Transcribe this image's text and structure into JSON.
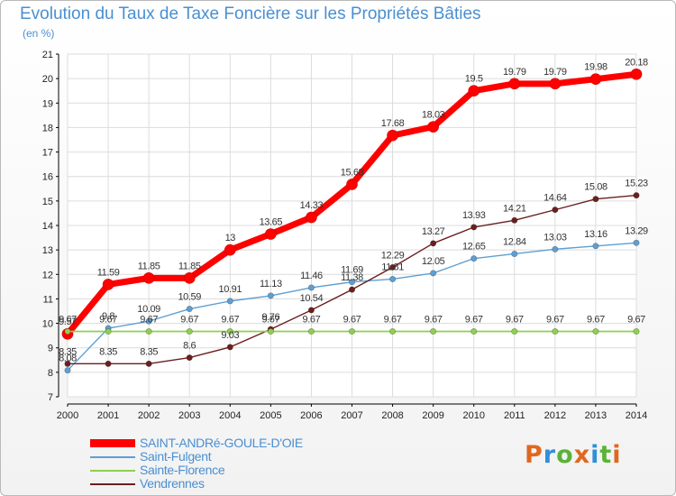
{
  "chart_data": {
    "type": "line",
    "title": "Evolution du Taux de Taxe Foncière sur les Propriétés Bâties",
    "unit_label": "(en %)",
    "x": [
      2000,
      2001,
      2002,
      2003,
      2004,
      2005,
      2006,
      2007,
      2008,
      2009,
      2010,
      2011,
      2012,
      2013,
      2014
    ],
    "ylim": [
      7,
      21
    ],
    "yticks": [
      7,
      8,
      9,
      10,
      11,
      12,
      13,
      14,
      15,
      16,
      17,
      18,
      19,
      20,
      21
    ],
    "legend_position": "bottom-left",
    "series": [
      {
        "name": "SAINT-ANDRé-GOULE-D'OIE",
        "color": "#ff0000",
        "values": [
          9.57,
          11.59,
          11.85,
          11.85,
          13,
          13.65,
          14.33,
          15.68,
          17.68,
          18.03,
          19.5,
          19.79,
          19.79,
          19.98,
          20.18
        ],
        "labels": [
          "9.57",
          "11.59",
          "11.85",
          "11.85",
          "13",
          "13.65",
          "14.33",
          "15.68",
          "17.68",
          "18.03",
          "19.5",
          "19.79",
          "19.79",
          "19.98",
          "20.18"
        ]
      },
      {
        "name": "Saint-Fulgent",
        "color": "#5e9fd3",
        "values": [
          8.08,
          9.8,
          10.09,
          10.59,
          10.91,
          11.13,
          11.46,
          11.69,
          11.81,
          12.05,
          12.65,
          12.84,
          13.03,
          13.16,
          13.29
        ],
        "labels": [
          "8.08",
          "9.8",
          "10.09",
          "10.59",
          "10.91",
          "11.13",
          "11.46",
          "11.69",
          "11.81",
          "12.05",
          "12.65",
          "12.84",
          "13.03",
          "13.16",
          "13.29"
        ]
      },
      {
        "name": "Sainte-Florence",
        "color": "#8fd04e",
        "values": [
          9.67,
          9.67,
          9.67,
          9.67,
          9.67,
          9.67,
          9.67,
          9.67,
          9.67,
          9.67,
          9.67,
          9.67,
          9.67,
          9.67,
          9.67
        ],
        "labels": [
          "9.67",
          "9.67",
          "9.67",
          "9.67",
          "9.67",
          "9.67",
          "9.67",
          "9.67",
          "9.67",
          "9.67",
          "9.67",
          "9.67",
          "9.67",
          "9.67",
          "9.67"
        ]
      },
      {
        "name": "Vendrennes",
        "color": "#6b1f1f",
        "values": [
          8.35,
          8.35,
          8.35,
          8.6,
          9.03,
          9.76,
          10.54,
          11.38,
          12.29,
          13.27,
          13.93,
          14.21,
          14.64,
          15.08,
          15.23
        ],
        "labels": [
          "8.35",
          "8.35",
          "8.35",
          "8.6",
          "9.03",
          "9.76",
          "10.54",
          "11.38",
          "12.29",
          "13.27",
          "13.93",
          "14.21",
          "14.64",
          "15.08",
          "15.23"
        ]
      }
    ]
  },
  "branding": {
    "letters": [
      "P",
      "r",
      "o",
      "x",
      "i",
      "t",
      "i"
    ]
  }
}
